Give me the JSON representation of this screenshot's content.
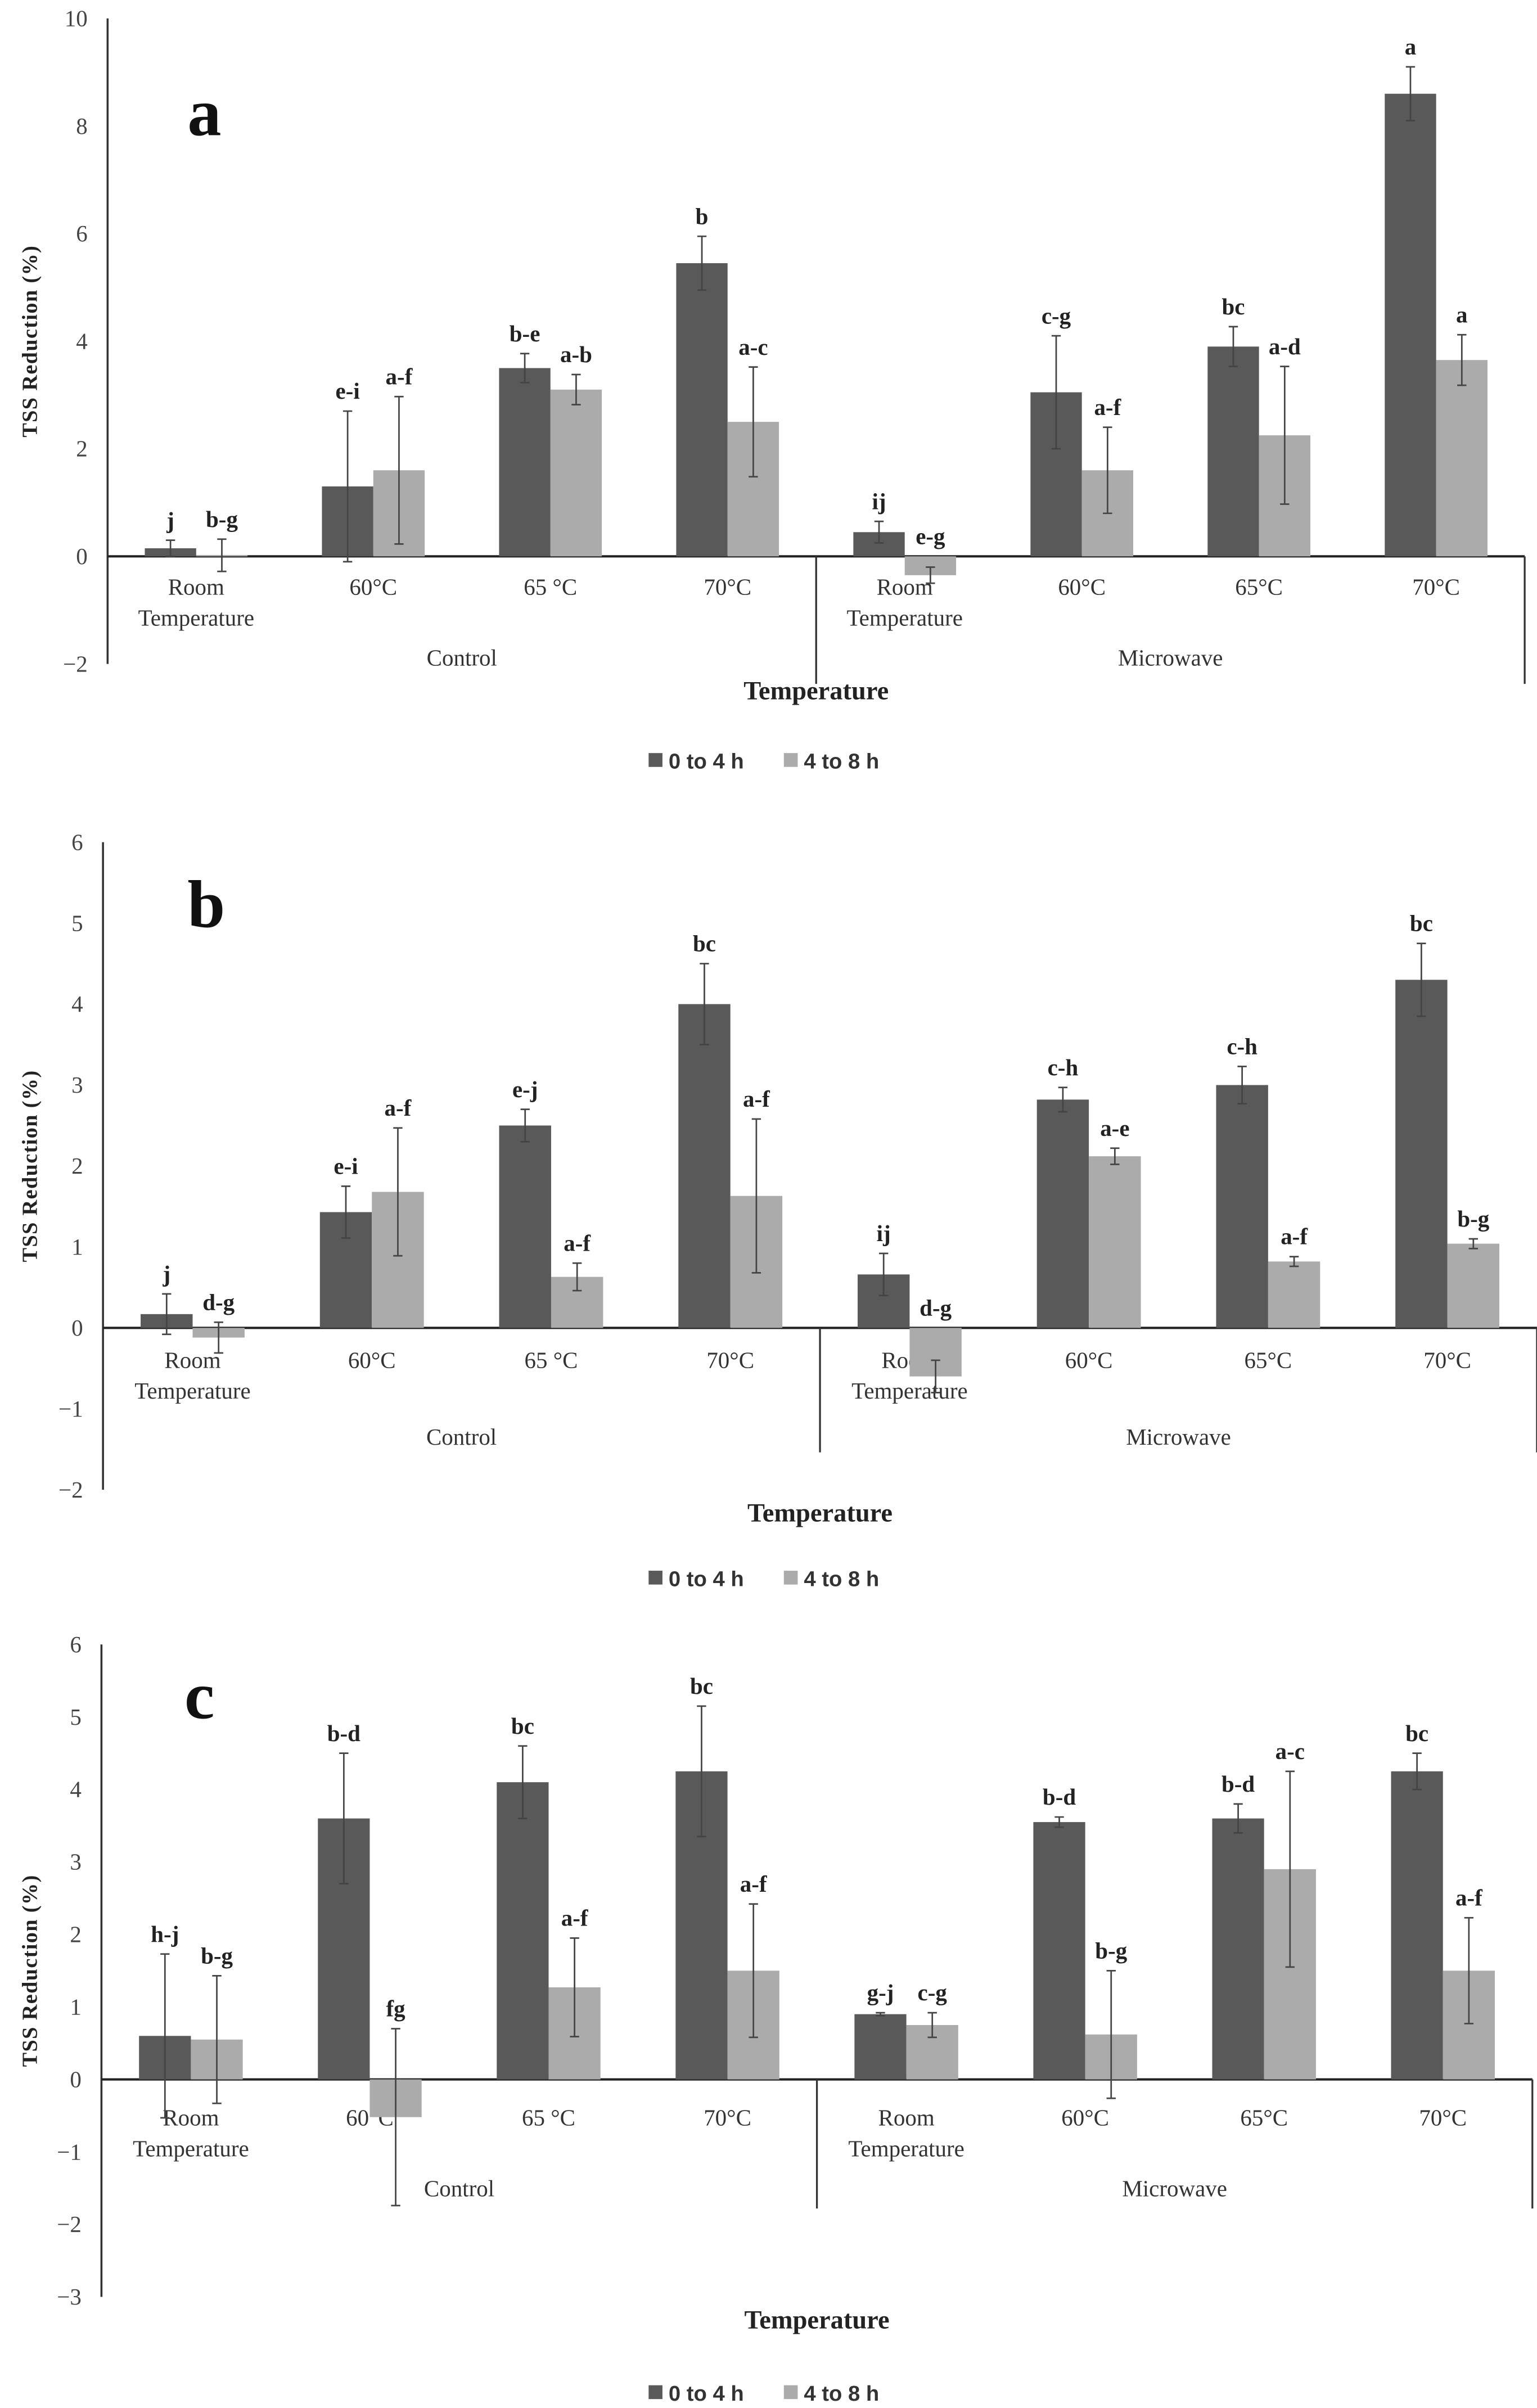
{
  "colors": {
    "series_0_4": "#595959",
    "series_4_8": "#ababab"
  },
  "chart_data": [
    {
      "type": "bar",
      "panel": "a",
      "ylabel": "TSS Reduction (%)",
      "xlabel": "Temperature",
      "ylim": [
        -2,
        10
      ],
      "yticks": [
        10,
        8,
        6,
        4,
        2,
        0,
        -2
      ],
      "ytick_labels": [
        "10",
        "8",
        "6",
        "4",
        "2",
        "0",
        "−2"
      ],
      "groups": [
        "Control",
        "Microwave"
      ],
      "categories": [
        "Room Temperature",
        "60°C",
        "65 °C",
        "70°C",
        "Room Temperature",
        "60°C",
        "65°C",
        "70°C"
      ],
      "legend": [
        "0 to 4 h",
        "4 to 8 h"
      ],
      "legend_position": "bottom-center",
      "series": [
        {
          "name": "0 to 4 h",
          "values": [
            0.15,
            1.3,
            3.5,
            5.45,
            0.45,
            3.05,
            3.9,
            8.6
          ],
          "error": [
            0.15,
            1.4,
            0.27,
            0.5,
            0.2,
            1.05,
            0.37,
            0.5
          ],
          "letters": [
            "j",
            "e-i",
            "b-e",
            "b",
            "ij",
            "c-g",
            "bc",
            "a"
          ]
        },
        {
          "name": "4 to 8 h",
          "values": [
            0.02,
            1.6,
            3.1,
            2.5,
            -0.35,
            1.6,
            2.25,
            3.65
          ],
          "error": [
            0.3,
            1.37,
            0.28,
            1.02,
            0.15,
            0.8,
            1.28,
            0.47
          ],
          "letters": [
            "b-g",
            "a-f",
            "a-b",
            "a-c",
            "e-g",
            "a-f",
            "a-d",
            "a"
          ]
        }
      ]
    },
    {
      "type": "bar",
      "panel": "b",
      "ylabel": "TSS Reduction (%)",
      "xlabel": "Temperature",
      "ylim": [
        -2,
        6
      ],
      "yticks": [
        6,
        5,
        4,
        3,
        2,
        1,
        0,
        -1,
        -2
      ],
      "ytick_labels": [
        "6",
        "5",
        "4",
        "3",
        "2",
        "1",
        "0",
        "−1",
        "−2"
      ],
      "groups": [
        "Control",
        "Microwave"
      ],
      "categories": [
        "Room Temperature",
        "60°C",
        "65 °C",
        "70°C",
        "Room Temperature",
        "60°C",
        "65°C",
        "70°C"
      ],
      "legend": [
        "0 to 4 h",
        "4 to 8 h"
      ],
      "legend_position": "bottom-center",
      "series": [
        {
          "name": "0 to 4 h",
          "values": [
            0.17,
            1.43,
            2.5,
            4.0,
            0.66,
            2.82,
            3.0,
            4.3
          ],
          "error": [
            0.25,
            0.32,
            0.2,
            0.5,
            0.26,
            0.15,
            0.23,
            0.45
          ],
          "letters": [
            "j",
            "e-i",
            "e-j",
            "bc",
            "ij",
            "c-h",
            "c-h",
            "bc"
          ]
        },
        {
          "name": "4 to 8 h",
          "values": [
            -0.12,
            1.68,
            0.63,
            1.63,
            -0.6,
            2.12,
            0.82,
            1.04
          ],
          "error": [
            0.19,
            0.79,
            0.17,
            0.95,
            0.2,
            0.1,
            0.06,
            0.06
          ],
          "letters": [
            "d-g",
            "a-f",
            "a-f",
            "a-f",
            "d-g",
            "a-e",
            "a-f",
            "b-g"
          ]
        }
      ]
    },
    {
      "type": "bar",
      "panel": "c",
      "ylabel": "TSS Reduction (%)",
      "xlabel": "Temperature",
      "ylim": [
        -3,
        6
      ],
      "yticks": [
        6,
        5,
        4,
        3,
        2,
        1,
        0,
        -1,
        -2,
        -3
      ],
      "ytick_labels": [
        "6",
        "5",
        "4",
        "3",
        "2",
        "1",
        "0",
        "−1",
        "−2",
        "−3"
      ],
      "groups": [
        "Control",
        "Microwave"
      ],
      "categories": [
        "Room Temperature",
        "60°C",
        "65 °C",
        "70°C",
        "Room Temperature",
        "60°C",
        "65°C",
        "70°C"
      ],
      "legend": [
        "0 to 4 h",
        "4 to 8 h"
      ],
      "legend_position": "bottom-center",
      "series": [
        {
          "name": "0 to 4 h",
          "values": [
            0.6,
            3.6,
            4.1,
            4.25,
            0.9,
            3.55,
            3.6,
            4.25
          ],
          "error": [
            1.13,
            0.9,
            0.5,
            0.9,
            0.02,
            0.07,
            0.2,
            0.25
          ],
          "letters": [
            "h-j",
            "b-d",
            "bc",
            "bc",
            "g-j",
            "b-d",
            "b-d",
            "bc"
          ]
        },
        {
          "name": "4 to 8 h",
          "values": [
            0.55,
            -0.52,
            1.27,
            1.5,
            0.75,
            0.62,
            2.9,
            1.5
          ],
          "error": [
            0.88,
            1.22,
            0.68,
            0.92,
            0.17,
            0.88,
            1.35,
            0.73
          ],
          "letters": [
            "b-g",
            "fg",
            "a-f",
            "a-f",
            "c-g",
            "b-g",
            "a-c",
            "a-f"
          ]
        }
      ]
    }
  ]
}
